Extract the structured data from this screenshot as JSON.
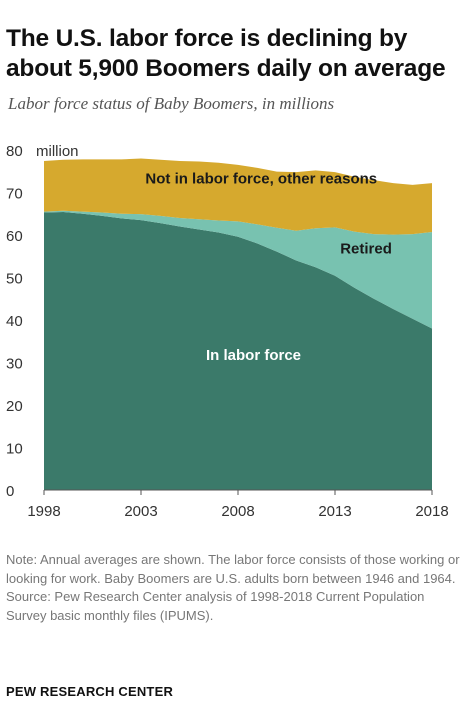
{
  "header": {
    "title": "The U.S. labor force is declining by about 5,900 Boomers daily on average",
    "subtitle": "Labor force status of Baby Boomers, in millions"
  },
  "chart_data": {
    "type": "area",
    "stacked": true,
    "title": "The U.S. labor force is declining by about 5,900 Boomers daily on average",
    "subtitle": "Labor force status of Baby Boomers, in millions",
    "unit_label": "million",
    "x": [
      1998,
      1999,
      2000,
      2001,
      2002,
      2003,
      2004,
      2005,
      2006,
      2007,
      2008,
      2009,
      2010,
      2011,
      2012,
      2013,
      2014,
      2015,
      2016,
      2017,
      2018
    ],
    "xticks": [
      1998,
      2003,
      2008,
      2013,
      2018
    ],
    "yticks": [
      0,
      10,
      20,
      30,
      40,
      50,
      60,
      70,
      80
    ],
    "ylim": [
      0,
      80
    ],
    "grid": false,
    "series": [
      {
        "name": "In labor force",
        "color": "#3b7a6a",
        "values": [
          65.3,
          65.4,
          65.0,
          64.5,
          63.9,
          63.5,
          62.8,
          62.0,
          61.3,
          60.6,
          59.6,
          58.0,
          56.1,
          54.0,
          52.4,
          50.4,
          47.6,
          45.0,
          42.6,
          40.3,
          38.0
        ]
      },
      {
        "name": "Retired",
        "color": "#78c2b0",
        "values": [
          0.2,
          0.3,
          0.5,
          0.8,
          1.1,
          1.4,
          1.7,
          2.0,
          2.4,
          2.8,
          3.6,
          4.5,
          5.6,
          7.0,
          9.2,
          11.4,
          13.2,
          15.2,
          17.5,
          19.9,
          22.7
        ]
      },
      {
        "name": "Not in labor force, other reasons",
        "color": "#d6a92e",
        "values": [
          11.9,
          12.0,
          12.3,
          12.5,
          12.8,
          13.1,
          13.2,
          13.4,
          13.6,
          13.6,
          13.3,
          13.3,
          13.2,
          13.8,
          13.6,
          13.0,
          12.9,
          12.7,
          12.1,
          11.6,
          11.5
        ]
      }
    ],
    "labels": {
      "in_labor_force": "In labor force",
      "retired": "Retired",
      "not_in_labor_force": "Not in labor force, other reasons"
    }
  },
  "footer": {
    "note": "Note: Annual averages are shown. The labor force consists of those working or looking for work. Baby Boomers are U.S. adults born between 1946 and 1964.",
    "source": "Source: Pew Research Center analysis of 1998-2018 Current Population Survey basic monthly files (IPUMS).",
    "brand": "PEW RESEARCH CENTER"
  }
}
